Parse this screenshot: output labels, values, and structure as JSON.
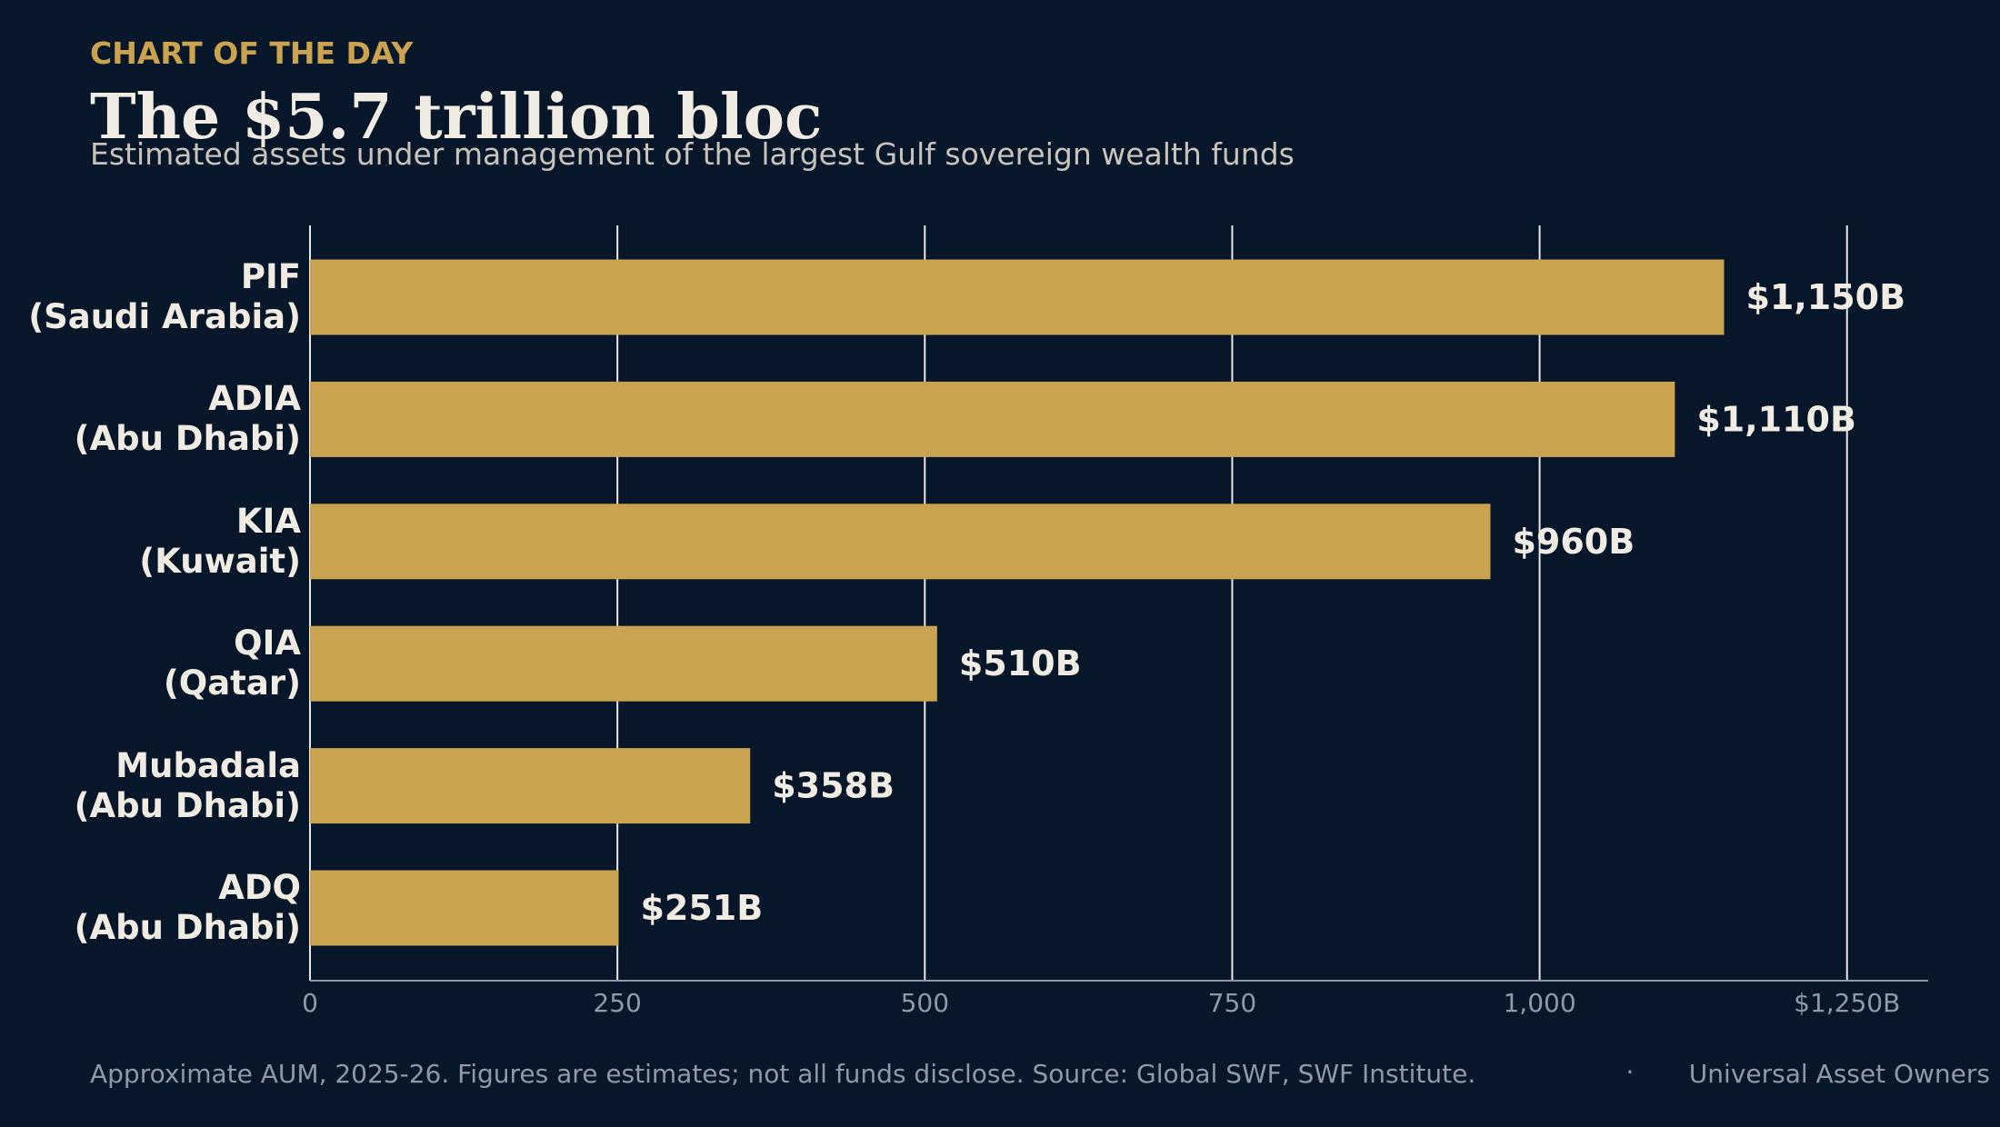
{
  "chart_data": {
    "type": "bar",
    "orientation": "horizontal",
    "kicker": "CHART OF THE DAY",
    "title": "The $5.7 trillion bloc",
    "subtitle": "Estimated assets under management of the largest Gulf sovereign wealth funds",
    "categories": [
      "PIF\n(Saudi Arabia)",
      "ADIA\n(Abu Dhabi)",
      "KIA\n(Kuwait)",
      "QIA\n(Qatar)",
      "Mubadala\n(Abu Dhabi)",
      "ADQ\n(Abu Dhabi)"
    ],
    "values": [
      1150,
      1110,
      960,
      510,
      358,
      251
    ],
    "value_labels": [
      "$1,150B",
      "$1,110B",
      "$960B",
      "$510B",
      "$358B",
      "$251B"
    ],
    "color": "#c9a34f",
    "xlim": [
      0,
      1316
    ],
    "xticks": [
      0,
      250,
      500,
      750,
      {
        "value": 1000,
        "label": "1,000"
      },
      {
        "value": 1250,
        "label": "$1,250B"
      }
    ],
    "grid": true,
    "note": "Approximate AUM, 2025-26. Figures are estimates; not all funds disclose. Source: Global SWF, SWF Institute.",
    "separator": "·",
    "credit": "Universal Asset Owners"
  }
}
